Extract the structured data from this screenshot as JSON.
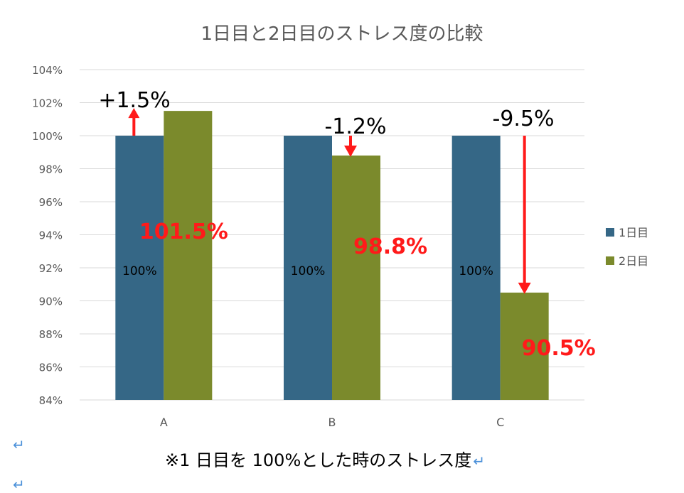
{
  "chart_data": {
    "type": "bar",
    "title": "1日目と2日目のストレス度の比較",
    "categories": [
      "A",
      "B",
      "C"
    ],
    "series": [
      {
        "name": "1日目",
        "values": [
          100,
          100,
          100
        ],
        "color": "#356786"
      },
      {
        "name": "2日目",
        "values": [
          101.5,
          98.8,
          90.5
        ],
        "color": "#7b8a2c"
      }
    ],
    "ylim": [
      84,
      104
    ],
    "yticks": [
      "84%",
      "86%",
      "88%",
      "90%",
      "92%",
      "94%",
      "96%",
      "98%",
      "100%",
      "102%",
      "104%"
    ],
    "xlabel": "",
    "ylabel": "",
    "grid": true,
    "legend_position": "right",
    "day1_labels": [
      "100%",
      "100%",
      "100%"
    ],
    "day2_labels": [
      "101.5%",
      "98.8%",
      "90.5%"
    ],
    "changes": [
      "+1.5%",
      "-1.2%",
      "-9.5%"
    ],
    "annotation_color": "#ff1a1a"
  },
  "note": {
    "text": "※1 日目を 100%とした時のストレス度",
    "mark": "↵"
  },
  "para_marks": [
    "↵",
    "↵"
  ]
}
